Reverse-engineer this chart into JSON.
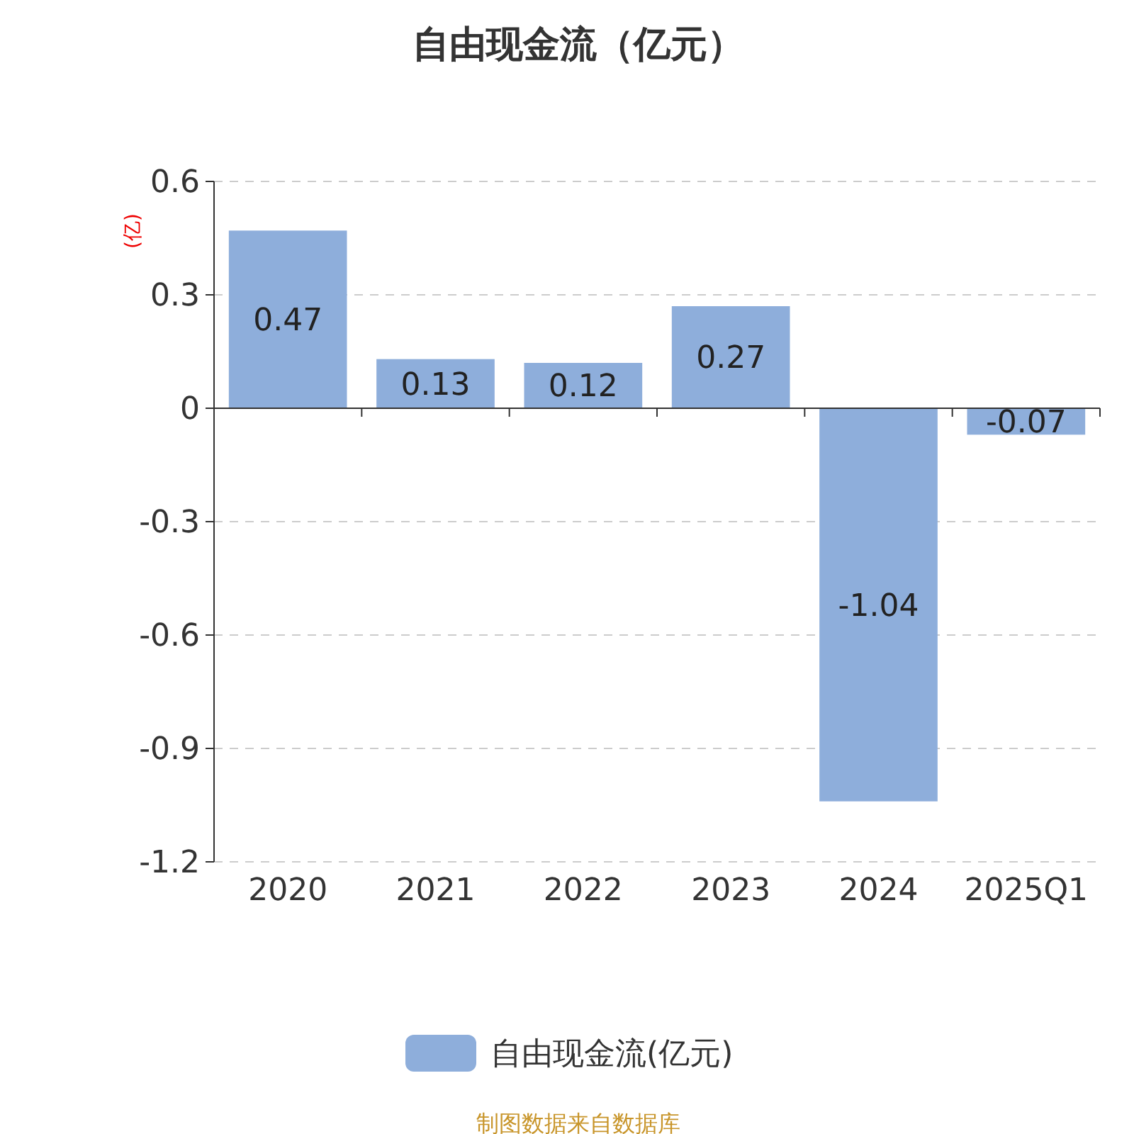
{
  "chart_data": {
    "type": "bar",
    "title": "自由现金流（亿元）",
    "ylabel": "(亿)",
    "categories": [
      "2020",
      "2021",
      "2022",
      "2023",
      "2024",
      "2025Q1"
    ],
    "series": [
      {
        "name": "自由现金流(亿元)",
        "color": "#8eaedb",
        "values": [
          0.47,
          0.13,
          0.12,
          0.27,
          -1.04,
          -0.07
        ]
      }
    ],
    "ylim": [
      -1.2,
      0.6
    ],
    "yticks": [
      {
        "value": 0.6,
        "label": "0.6"
      },
      {
        "value": 0.3,
        "label": "0.3"
      },
      0,
      {
        "value": -0.3,
        "label": "-0.3"
      },
      {
        "value": -0.6,
        "label": "-0.6"
      },
      {
        "value": -0.9,
        "label": "-0.9"
      },
      {
        "value": -1.2,
        "label": "-1.2"
      }
    ],
    "grid": "y",
    "data_labels": true,
    "legend": "bottom",
    "annotations": [
      "制图数据来自数据库"
    ]
  }
}
